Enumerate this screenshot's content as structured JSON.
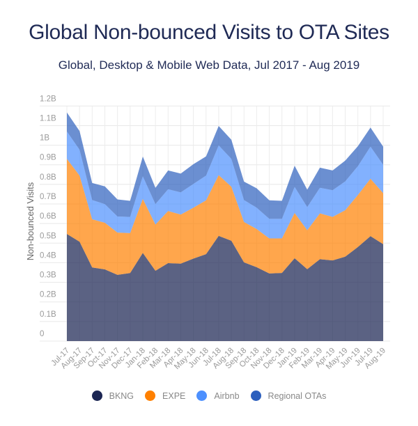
{
  "chart_data": {
    "type": "area",
    "stacked": true,
    "title": "Global Non-bounced Visits to OTA Sites",
    "subtitle": "Global, Desktop & Mobile Web Data, Jul 2017 - Aug 2019",
    "xlabel": "",
    "ylabel": "Non-bounced Visits",
    "unit": "B",
    "ylim": [
      0,
      1.2
    ],
    "yticks": [
      "0",
      "0.1B",
      "0.2B",
      "0.3B",
      "0.4B",
      "0.5B",
      "0.6B",
      "0.7B",
      "0.8B",
      "0.9B",
      "1B",
      "1.1B",
      "1.2B"
    ],
    "grid": true,
    "legend_position": "bottom",
    "categories": [
      "Jul-17",
      "Aug-17",
      "Sep-17",
      "Oct-17",
      "Nov-17",
      "Dec-17",
      "Jan-18",
      "Feb-18",
      "Mar-18",
      "Apr-18",
      "May-18",
      "Jun-18",
      "Jul-18",
      "Aug-18",
      "Sep-18",
      "Oct-18",
      "Nov-18",
      "Dec-18",
      "Jan-19",
      "Feb-19",
      "Mar-19",
      "Apr-19",
      "May-19",
      "Jun-19",
      "Jul-19",
      "Aug-19"
    ],
    "series": [
      {
        "name": "BKNG",
        "color": "#1c2653",
        "values": [
          0.547,
          0.507,
          0.376,
          0.366,
          0.338,
          0.347,
          0.45,
          0.359,
          0.398,
          0.395,
          0.421,
          0.444,
          0.537,
          0.512,
          0.402,
          0.377,
          0.345,
          0.348,
          0.423,
          0.367,
          0.418,
          0.412,
          0.431,
          0.48,
          0.536,
          0.495
        ]
      },
      {
        "name": "EXPE",
        "color": "#ff8000",
        "values": [
          0.383,
          0.338,
          0.246,
          0.238,
          0.216,
          0.204,
          0.276,
          0.236,
          0.266,
          0.251,
          0.26,
          0.275,
          0.31,
          0.276,
          0.206,
          0.195,
          0.179,
          0.176,
          0.231,
          0.199,
          0.234,
          0.222,
          0.237,
          0.266,
          0.293,
          0.26
        ]
      },
      {
        "name": "Airbnb",
        "color": "#4d90fe",
        "values": [
          0.14,
          0.132,
          0.098,
          0.095,
          0.082,
          0.083,
          0.115,
          0.104,
          0.111,
          0.113,
          0.121,
          0.126,
          0.152,
          0.142,
          0.112,
          0.109,
          0.1,
          0.1,
          0.133,
          0.118,
          0.131,
          0.136,
          0.147,
          0.147,
          0.164,
          0.145
        ]
      },
      {
        "name": "Regional OTAs",
        "color": "#2c5fbd",
        "values": [
          0.097,
          0.095,
          0.087,
          0.091,
          0.087,
          0.082,
          0.101,
          0.083,
          0.096,
          0.096,
          0.101,
          0.098,
          0.099,
          0.098,
          0.094,
          0.099,
          0.095,
          0.092,
          0.108,
          0.089,
          0.102,
          0.101,
          0.106,
          0.102,
          0.097,
          0.093
        ]
      }
    ]
  }
}
